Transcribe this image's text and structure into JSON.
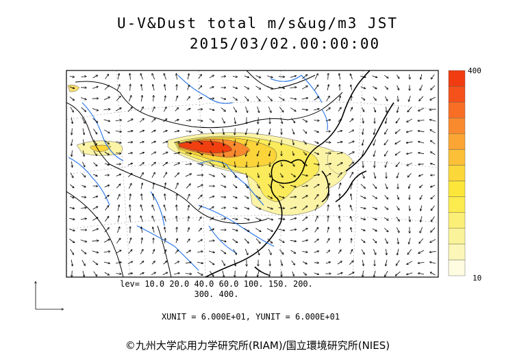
{
  "header": {
    "title": "U-V&Dust total m/s&ug/m3 JST",
    "timestamp": "2015/03/02.00:00:00"
  },
  "legend": {
    "levels_line1": "lev= 10.0 20.0 40.0 60.0 100. 150. 200.",
    "levels_line2": "300. 400.",
    "colorbar_max": "400",
    "colorbar_min": "10",
    "colors": [
      "#fdfbe0",
      "#fcf7b8",
      "#fbf39a",
      "#fbef78",
      "#fbeb4f",
      "#fce63a",
      "#fbd73a",
      "#fbc038",
      "#fba534",
      "#fa8a2e",
      "#f86e25",
      "#f5511a",
      "#f03c10"
    ]
  },
  "units": "XUNIT = 6.000E+01, YUNIT = 6.000E+01",
  "copyright": "©九州大学応用力学研究所(RIAM)/国立環境研究所(NIES)",
  "map_colors": {
    "coast": "#000000",
    "river": "#1f6fe8",
    "border": "#000000",
    "dust_low": "#fbf0a0",
    "dust_high": "#f05010"
  }
}
